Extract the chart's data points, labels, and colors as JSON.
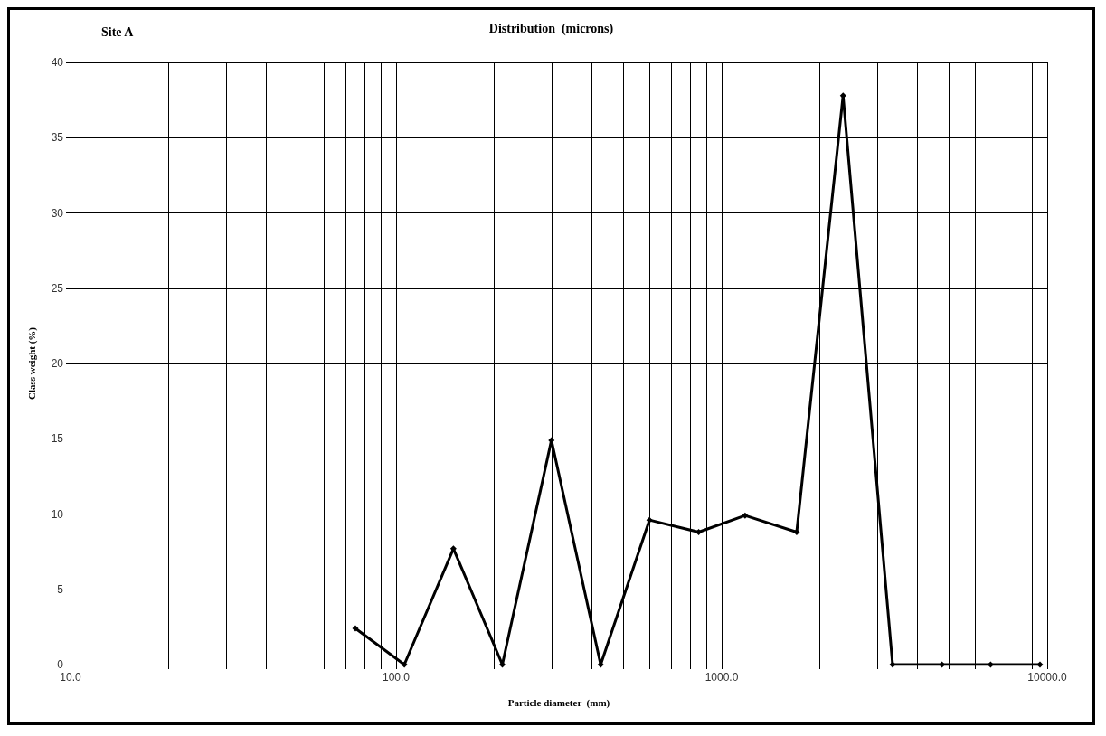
{
  "chart_data": {
    "type": "line",
    "title": "Distribution  (microns)",
    "subtitle": "Site A",
    "xlabel": "Particle diameter  (mm)",
    "ylabel": "Class weight (%)",
    "x": [
      75,
      106,
      150,
      212,
      300,
      425,
      600,
      850,
      1180,
      1700,
      2360,
      3350,
      4750,
      6700,
      9500
    ],
    "series": [
      {
        "color": "#000000",
        "values": [
          2.4,
          0,
          7.7,
          0,
          14.9,
          0,
          9.6,
          8.8,
          9.9,
          8.8,
          37.8,
          0,
          0,
          0,
          0
        ]
      }
    ],
    "log": "x",
    "xlim": [
      10,
      10000
    ],
    "xticks": [
      {
        "value": 10,
        "label": "10.0"
      },
      {
        "value": 20,
        "label": null
      },
      {
        "value": 30,
        "label": null
      },
      {
        "value": 40,
        "label": null
      },
      {
        "value": 50,
        "label": null
      },
      {
        "value": 60,
        "label": null
      },
      {
        "value": 70,
        "label": null
      },
      {
        "value": 80,
        "label": null
      },
      {
        "value": 90,
        "label": null
      },
      {
        "value": 100,
        "label": "100.0"
      },
      {
        "value": 200,
        "label": null
      },
      {
        "value": 300,
        "label": null
      },
      {
        "value": 400,
        "label": null
      },
      {
        "value": 500,
        "label": null
      },
      {
        "value": 600,
        "label": null
      },
      {
        "value": 700,
        "label": null
      },
      {
        "value": 800,
        "label": null
      },
      {
        "value": 900,
        "label": null
      },
      {
        "value": 1000,
        "label": "1000.0"
      },
      {
        "value": 2000,
        "label": null
      },
      {
        "value": 3000,
        "label": null
      },
      {
        "value": 4000,
        "label": null
      },
      {
        "value": 5000,
        "label": null
      },
      {
        "value": 6000,
        "label": null
      },
      {
        "value": 7000,
        "label": null
      },
      {
        "value": 8000,
        "label": null
      },
      {
        "value": 9000,
        "label": null
      },
      {
        "value": 10000,
        "label": "10000.0"
      }
    ],
    "ylim": [
      0,
      40
    ],
    "yticks": [
      0,
      5,
      10,
      15,
      20,
      25,
      30,
      35,
      40
    ],
    "grid": true,
    "marker": "diamond",
    "line_style": "solid"
  }
}
